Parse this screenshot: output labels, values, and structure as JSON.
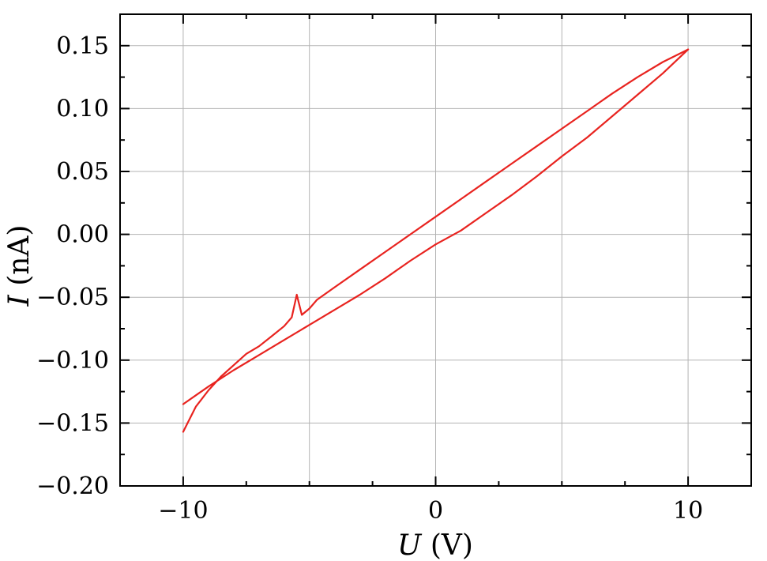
{
  "chart_data": {
    "type": "line",
    "xlabel_symbol": "U",
    "xlabel_unit": "(V)",
    "ylabel_symbol": "I",
    "ylabel_unit": "(nA)",
    "xlim": [
      -12.5,
      12.5
    ],
    "ylim": [
      -0.2,
      0.175
    ],
    "x_ticks": [
      -10,
      0,
      10
    ],
    "x_tick_labels": [
      "−10",
      "0",
      "10"
    ],
    "x_minor_ticks": [
      -12.5,
      -7.5,
      -5,
      -2.5,
      2.5,
      5,
      7.5,
      12.5
    ],
    "x_grid": [
      -10,
      -5,
      0,
      5,
      10
    ],
    "y_ticks": [
      -0.2,
      -0.15,
      -0.1,
      -0.05,
      0.0,
      0.05,
      0.1,
      0.15
    ],
    "y_tick_labels": [
      "−0.20",
      "−0.15",
      "−0.10",
      "−0.05",
      "0.00",
      "0.05",
      "0.10",
      "0.15"
    ],
    "y_minor_ticks": [
      -0.175,
      -0.125,
      -0.075,
      -0.025,
      0.025,
      0.075,
      0.125
    ],
    "grid": true,
    "color": "#e8231f",
    "series": [
      {
        "x": [
          -10,
          -9.5,
          -9,
          -8.5,
          -8,
          -7.5,
          -7,
          -6.5,
          -6,
          -5.7,
          -5.5,
          -5.3,
          -5.0,
          -4.7,
          -4,
          -3,
          -2,
          -1,
          0,
          1,
          2,
          3,
          4,
          5,
          6,
          7,
          8,
          9,
          10
        ],
        "y": [
          -0.157,
          -0.137,
          -0.124,
          -0.113,
          -0.104,
          -0.095,
          -0.089,
          -0.081,
          -0.073,
          -0.066,
          -0.048,
          -0.064,
          -0.059,
          -0.052,
          -0.042,
          -0.028,
          -0.014,
          0.0,
          0.014,
          0.028,
          0.042,
          0.056,
          0.07,
          0.084,
          0.098,
          0.112,
          0.125,
          0.137,
          0.147
        ]
      },
      {
        "x": [
          10,
          9,
          8,
          7,
          6,
          5,
          4,
          3,
          2,
          1,
          0,
          -1,
          -2,
          -3,
          -4,
          -5,
          -6,
          -7,
          -8,
          -9,
          -10
        ],
        "y": [
          0.147,
          0.128,
          0.111,
          0.094,
          0.077,
          0.062,
          0.046,
          0.031,
          0.017,
          0.003,
          -0.008,
          -0.021,
          -0.035,
          -0.048,
          -0.06,
          -0.072,
          -0.084,
          -0.096,
          -0.108,
          -0.121,
          -0.135
        ]
      }
    ]
  }
}
